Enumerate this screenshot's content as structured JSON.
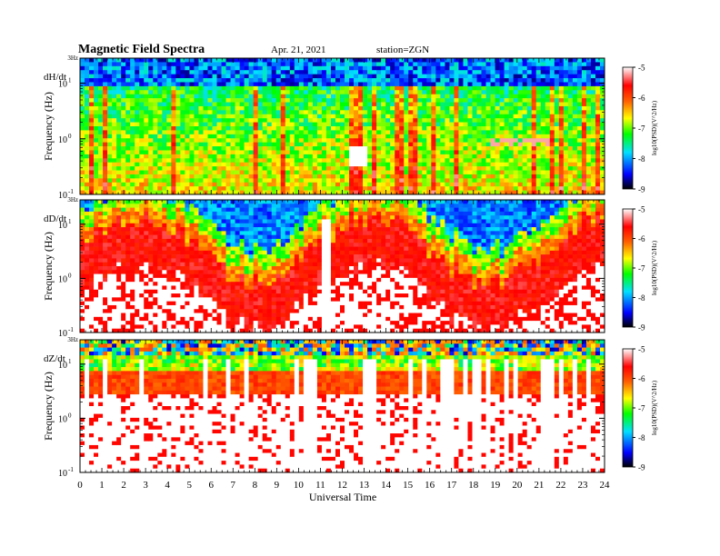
{
  "header": {
    "title": "Magnetic  Field  Spectra",
    "date": "Apr. 21, 2021",
    "station": "station=ZGN"
  },
  "chart_data": {
    "type": "heatmap",
    "xlabel": "Universal Time",
    "xlim": [
      0,
      24
    ],
    "x_ticks": [
      "0",
      "1",
      "2",
      "3",
      "4",
      "5",
      "6",
      "7",
      "8",
      "9",
      "10",
      "11",
      "12",
      "13",
      "14",
      "15",
      "16",
      "17",
      "18",
      "19",
      "20",
      "21",
      "22",
      "23",
      "24"
    ],
    "colorbar": {
      "label": "log10(PSD)(V^2/Hz)",
      "ticks": [
        "-5",
        "-6",
        "-7",
        "-8",
        "-9"
      ],
      "range": [
        -9,
        -5
      ],
      "colors": [
        "#000000",
        "#0000ff",
        "#00e0ff",
        "#00ff00",
        "#ffff00",
        "#ff6000",
        "#ff0000",
        "#ffffff"
      ]
    },
    "panels": [
      {
        "name": "dH/dt",
        "ylabel": "Frequency  (Hz)",
        "top_label": "3Hz",
        "y_ticks": [
          {
            "base": "10",
            "exp": "1",
            "value": 10
          },
          {
            "base": "10",
            "exp": "0",
            "value": 1
          },
          {
            "base": "10",
            "exp": "-1",
            "value": 0.1
          }
        ]
      },
      {
        "name": "dD/dt",
        "ylabel": "Frequency  (Hz)",
        "top_label": "3Hz",
        "y_ticks": [
          {
            "base": "10",
            "exp": "1",
            "value": 10
          },
          {
            "base": "10",
            "exp": "0",
            "value": 1
          },
          {
            "base": "10",
            "exp": "-1",
            "value": 0.1
          }
        ]
      },
      {
        "name": "dZ/dt",
        "ylabel": "Frequency  (Hz)",
        "top_label": "3Hz",
        "y_ticks": [
          {
            "base": "10",
            "exp": "1",
            "value": 10
          },
          {
            "base": "10",
            "exp": "0",
            "value": 1
          },
          {
            "base": "10",
            "exp": "-1",
            "value": 0.1
          }
        ]
      }
    ]
  }
}
